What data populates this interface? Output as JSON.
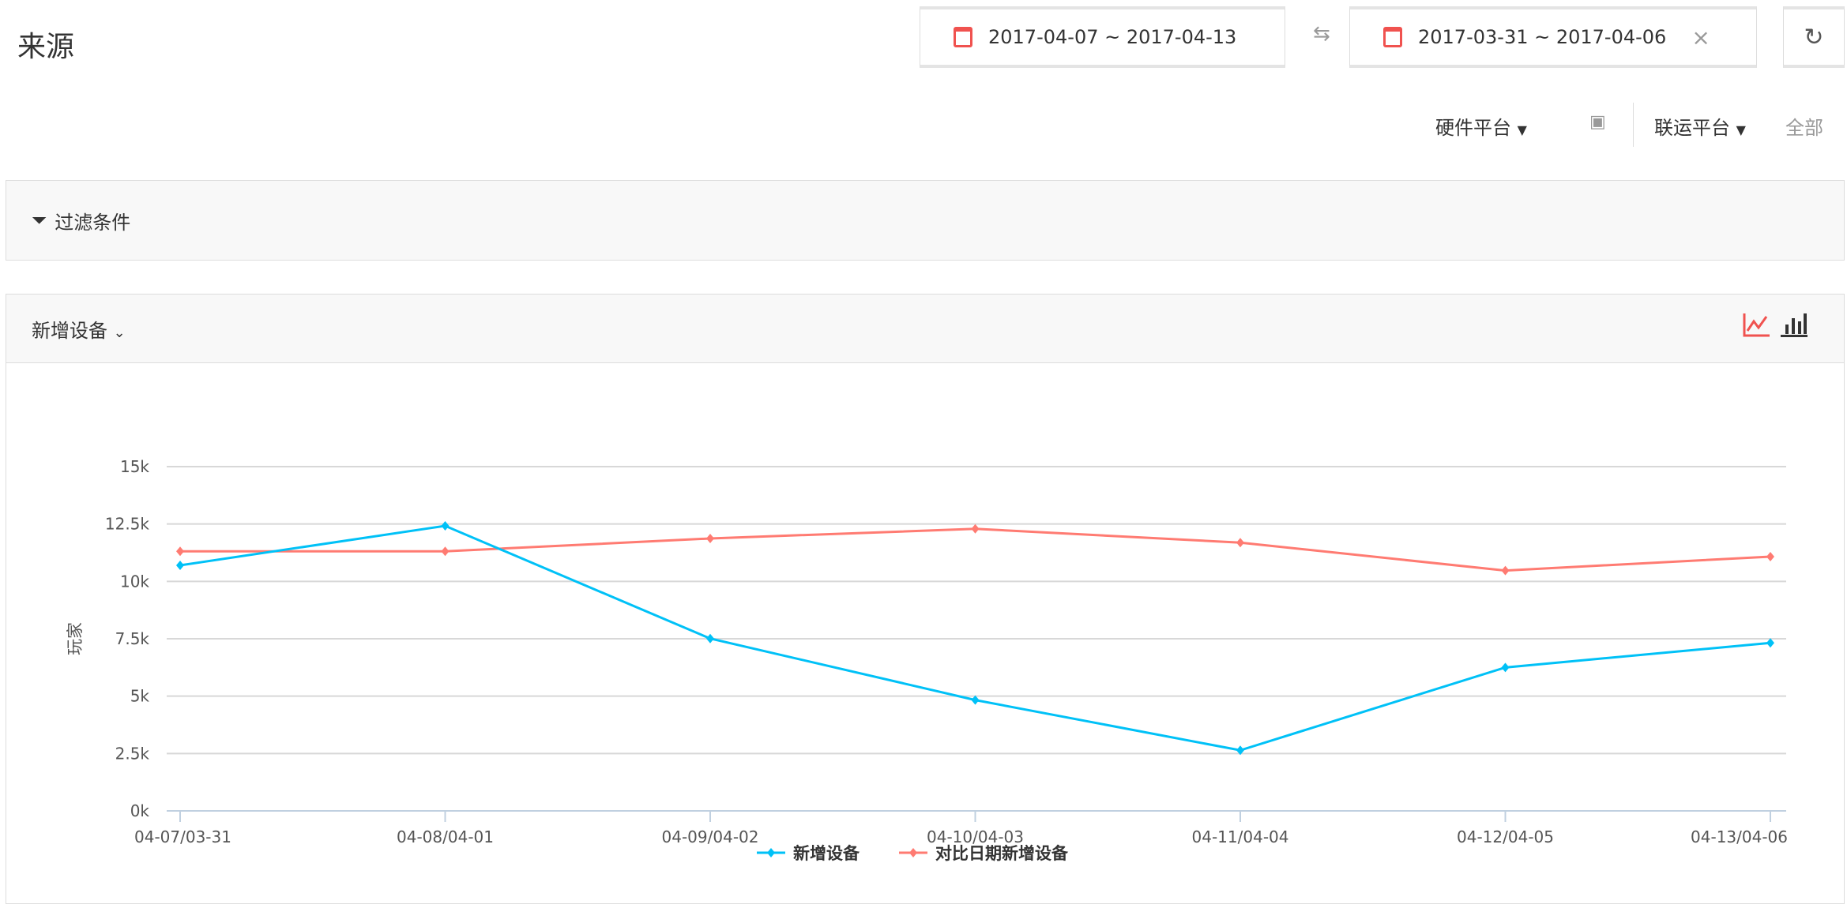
{
  "header": {
    "title": "来源"
  },
  "date_range": {
    "current": "2017-04-07 ~ 2017-04-13",
    "compare": "2017-03-31 ~ 2017-04-06"
  },
  "platforms": {
    "hardware_label": "硬件平台",
    "joint_label": "联运平台",
    "joint_value": "全部"
  },
  "filter": {
    "label": "过滤条件"
  },
  "chart_panel": {
    "metric_label": "新增设备"
  },
  "colors": {
    "accent": "#f0524f",
    "series_current": "#00c1f7",
    "series_compare": "#ff7b72"
  },
  "chart_data": {
    "type": "line",
    "ylabel": "玩家",
    "xlabel": "",
    "ylim": [
      0,
      15000
    ],
    "yticks": [
      "0k",
      "2.5k",
      "5k",
      "7.5k",
      "10k",
      "12.5k",
      "15k"
    ],
    "ytick_values": [
      0,
      2500,
      5000,
      7500,
      10000,
      12500,
      15000
    ],
    "categories": [
      "04-07/03-31",
      "04-08/04-01",
      "04-09/04-02",
      "04-10/04-03",
      "04-11/04-04",
      "04-12/04-05",
      "04-13/04-06"
    ],
    "grid": true,
    "legend": "bottom",
    "series": [
      {
        "name": "新增设备",
        "color": "#00c1f7",
        "values": [
          10700,
          12420,
          7510,
          4830,
          2640,
          6250,
          7320
        ]
      },
      {
        "name": "对比日期新增设备",
        "color": "#ff7b72",
        "values": [
          11310,
          11310,
          11870,
          12290,
          11690,
          10470,
          11080
        ]
      }
    ]
  }
}
